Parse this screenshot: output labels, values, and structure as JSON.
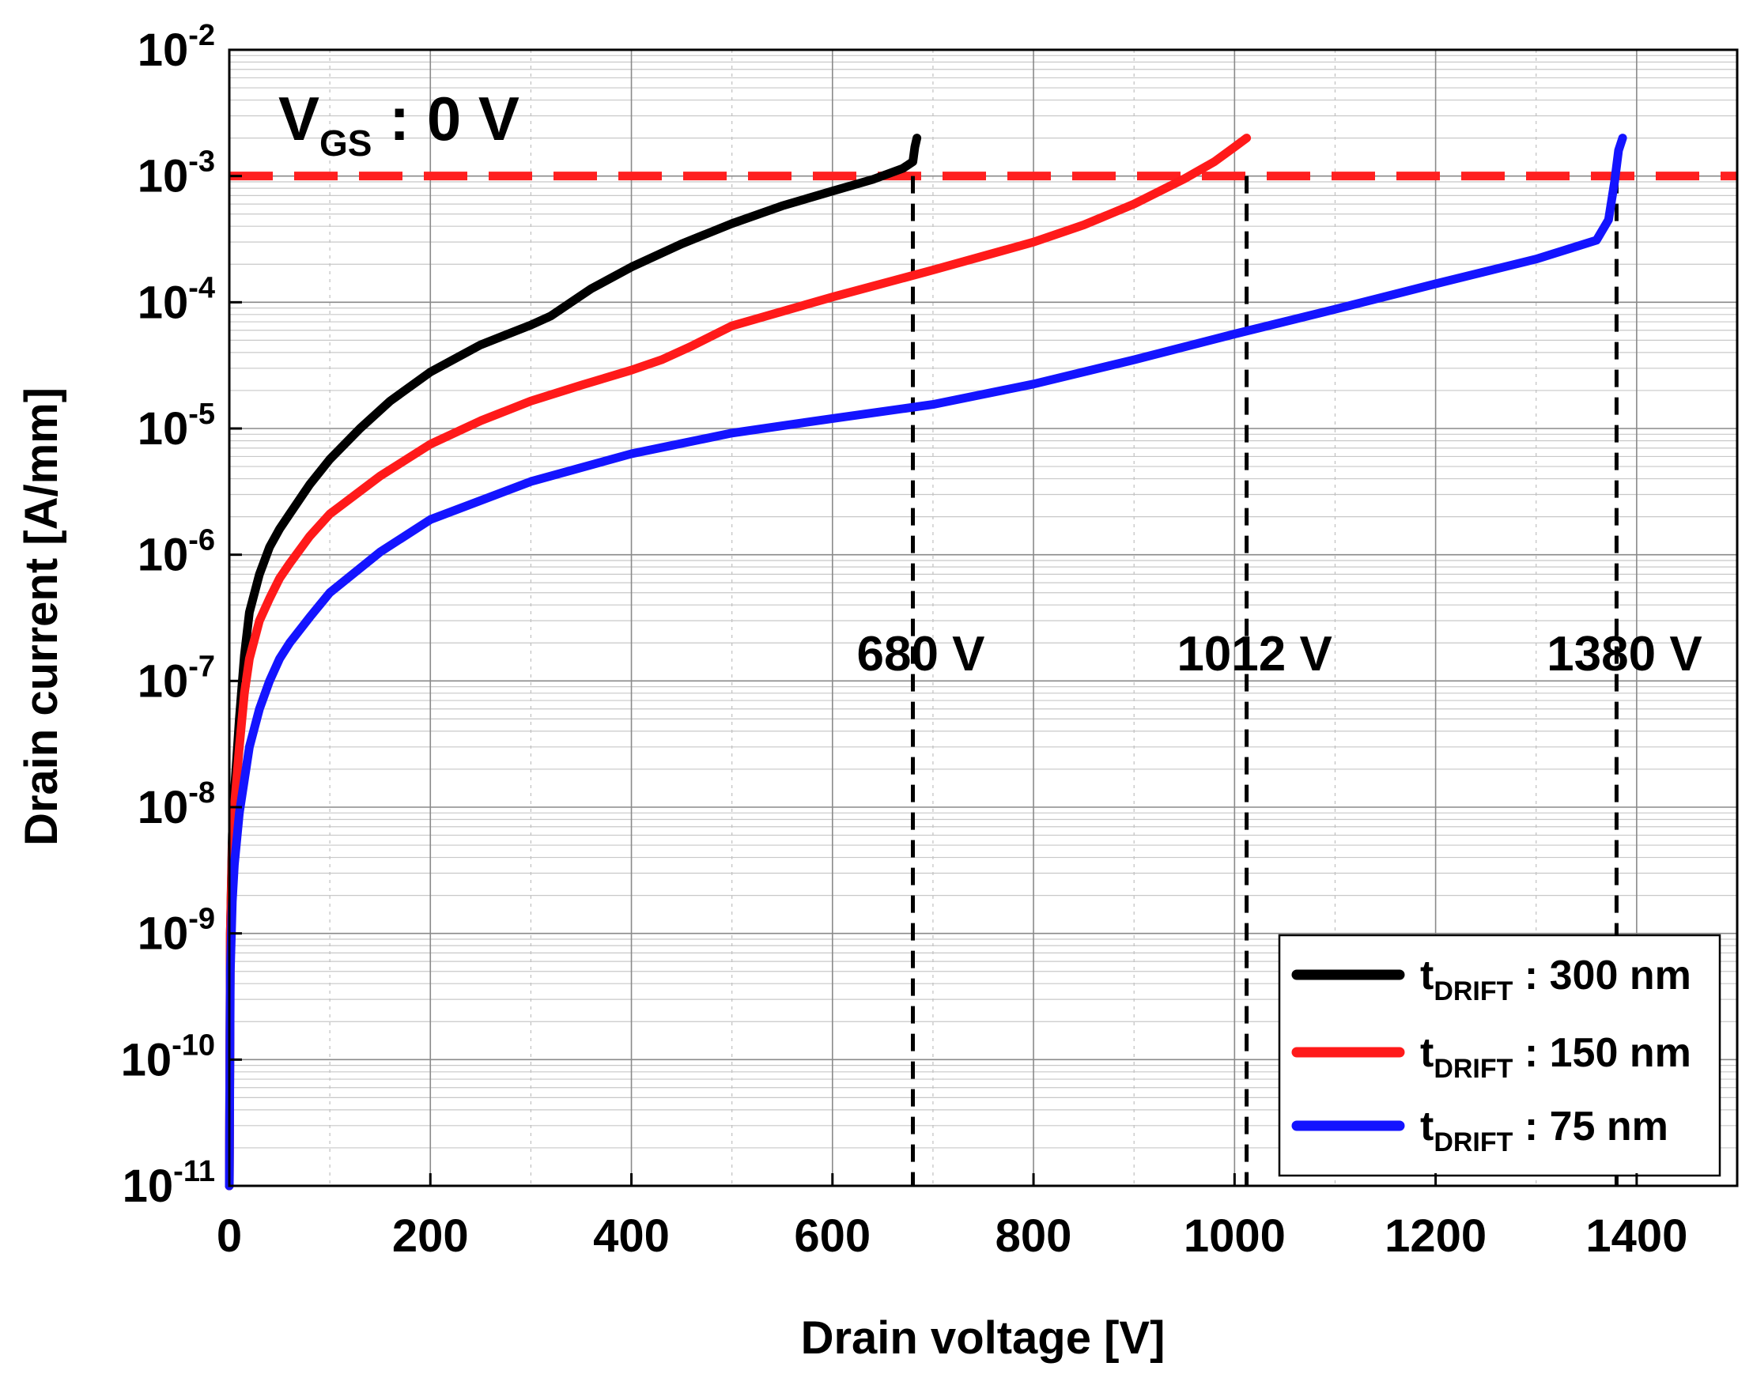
{
  "chart_data": {
    "type": "line",
    "xlabel": "Drain voltage [V]",
    "ylabel": "Drain current [A/mm]",
    "xscale": "linear",
    "yscale": "log",
    "xlim": [
      0,
      1500
    ],
    "ylim_exp": [
      -11,
      -2
    ],
    "x_ticks": [
      0,
      200,
      400,
      600,
      800,
      1000,
      1200,
      1400
    ],
    "x_tick_labels": [
      "0",
      "200",
      "400",
      "600",
      "800",
      "1000",
      "1200",
      "1400"
    ],
    "y_tick_exps": [
      -11,
      -10,
      -9,
      -8,
      -7,
      -6,
      -5,
      -4,
      -3,
      -2
    ],
    "y_tick_labels": [
      {
        "base": "10",
        "exp": "-11"
      },
      {
        "base": "10",
        "exp": "-10"
      },
      {
        "base": "10",
        "exp": "-9"
      },
      {
        "base": "10",
        "exp": "-8"
      },
      {
        "base": "10",
        "exp": "-7"
      },
      {
        "base": "10",
        "exp": "-6"
      },
      {
        "base": "10",
        "exp": "-5"
      },
      {
        "base": "10",
        "exp": "-4"
      },
      {
        "base": "10",
        "exp": "-3"
      },
      {
        "base": "10",
        "exp": "-2"
      }
    ],
    "grid": true,
    "condition_label": {
      "main": "V",
      "sub": "GS",
      "rest": " : 0 V"
    },
    "criterion_line": {
      "y": 0.001,
      "color": "#ff2020",
      "style": "dashed"
    },
    "breakdown_markers": [
      {
        "x": 680,
        "label": "680 V"
      },
      {
        "x": 1012,
        "label": "1012 V"
      },
      {
        "x": 1380,
        "label": "1380 V"
      }
    ],
    "legend_position": "bottom-right",
    "series": [
      {
        "name_main": "t",
        "name_sub": "DRIFT",
        "name_rest": " : 300 nm",
        "color": "#000000",
        "x": [
          0,
          1,
          3,
          5,
          10,
          15,
          20,
          30,
          40,
          50,
          60,
          80,
          100,
          130,
          160,
          200,
          250,
          300,
          320,
          340,
          360,
          400,
          450,
          500,
          550,
          600,
          640,
          670,
          680,
          682,
          684
        ],
        "y": [
          1e-11,
          1e-09,
          6e-09,
          1.3e-08,
          5e-08,
          1.6e-07,
          3.5e-07,
          7e-07,
          1.15e-06,
          1.6e-06,
          2.1e-06,
          3.6e-06,
          5.7e-06,
          1e-05,
          1.65e-05,
          2.8e-05,
          4.6e-05,
          6.6e-05,
          7.8e-05,
          0.0001,
          0.000128,
          0.00019,
          0.00029,
          0.00042,
          0.00058,
          0.00076,
          0.00094,
          0.00115,
          0.0013,
          0.0017,
          0.002
        ]
      },
      {
        "name_main": "t",
        "name_sub": "DRIFT",
        "name_rest": " : 150 nm",
        "color": "#ff1a1a",
        "x": [
          0,
          1,
          3,
          5,
          10,
          15,
          20,
          30,
          40,
          50,
          60,
          80,
          100,
          150,
          200,
          250,
          300,
          350,
          400,
          430,
          460,
          500,
          600,
          700,
          800,
          850,
          900,
          950,
          980,
          1000,
          1012
        ],
        "y": [
          1e-11,
          1e-09,
          5e-09,
          1e-08,
          3e-08,
          8e-08,
          1.5e-07,
          3e-07,
          4.5e-07,
          6.5e-07,
          8.5e-07,
          1.4e-06,
          2.1e-06,
          4.2e-06,
          7.5e-06,
          1.15e-05,
          1.65e-05,
          2.2e-05,
          2.9e-05,
          3.5e-05,
          4.5e-05,
          6.5e-05,
          0.00011,
          0.00018,
          0.0003,
          0.00041,
          0.0006,
          0.00095,
          0.0013,
          0.0017,
          0.002
        ]
      },
      {
        "name_main": "t",
        "name_sub": "DRIFT",
        "name_rest": " : 75 nm",
        "color": "#1414ff",
        "x": [
          0,
          1,
          3,
          5,
          10,
          20,
          30,
          40,
          50,
          60,
          80,
          100,
          150,
          200,
          300,
          400,
          500,
          600,
          700,
          800,
          900,
          1000,
          1100,
          1200,
          1300,
          1360,
          1372,
          1378,
          1382,
          1386
        ],
        "y": [
          1e-11,
          5e-10,
          1.8e-09,
          3.5e-09,
          9e-09,
          3e-08,
          6e-08,
          1e-07,
          1.5e-07,
          2e-07,
          3.2e-07,
          5e-07,
          1.05e-06,
          1.9e-06,
          3.8e-06,
          6.3e-06,
          9.2e-06,
          1.2e-05,
          1.55e-05,
          2.25e-05,
          3.5e-05,
          5.6e-05,
          8.8e-05,
          0.00014,
          0.00022,
          0.00031,
          0.00045,
          0.0009,
          0.0016,
          0.002
        ]
      }
    ]
  }
}
